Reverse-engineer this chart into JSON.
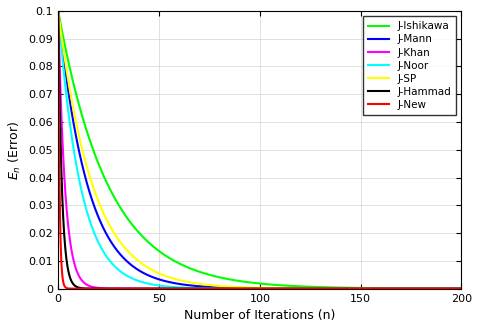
{
  "title": "",
  "xlabel": "Number of Iterations (n)",
  "ylabel": "$E_n$ (Error)",
  "xlim": [
    0,
    200
  ],
  "ylim": [
    0,
    0.1
  ],
  "yticks": [
    0,
    0.01,
    0.02,
    0.03,
    0.04,
    0.05,
    0.06,
    0.07,
    0.08,
    0.09,
    0.1
  ],
  "xticks": [
    0,
    50,
    100,
    150,
    200
  ],
  "series": [
    {
      "label": "J-Ishikawa",
      "color": "#00FF00",
      "rate": 0.04
    },
    {
      "label": "J-Mann",
      "color": "#0000FF",
      "rate": 0.068
    },
    {
      "label": "J-Khan",
      "color": "#FF00FF",
      "rate": 0.3
    },
    {
      "label": "J-Noor",
      "color": "#00FFFF",
      "rate": 0.09
    },
    {
      "label": "J-SP",
      "color": "#FFFF00",
      "rate": 0.058
    },
    {
      "label": "J-Hammad",
      "color": "#000000",
      "rate": 0.55
    },
    {
      "label": "J-New",
      "color": "#FF0000",
      "rate": 1.5
    }
  ],
  "background_color": "#ffffff",
  "grid_color": "#d3d3d3",
  "line_width": 1.5,
  "legend_fontsize": 7.5,
  "axis_fontsize": 9,
  "tick_fontsize": 8
}
